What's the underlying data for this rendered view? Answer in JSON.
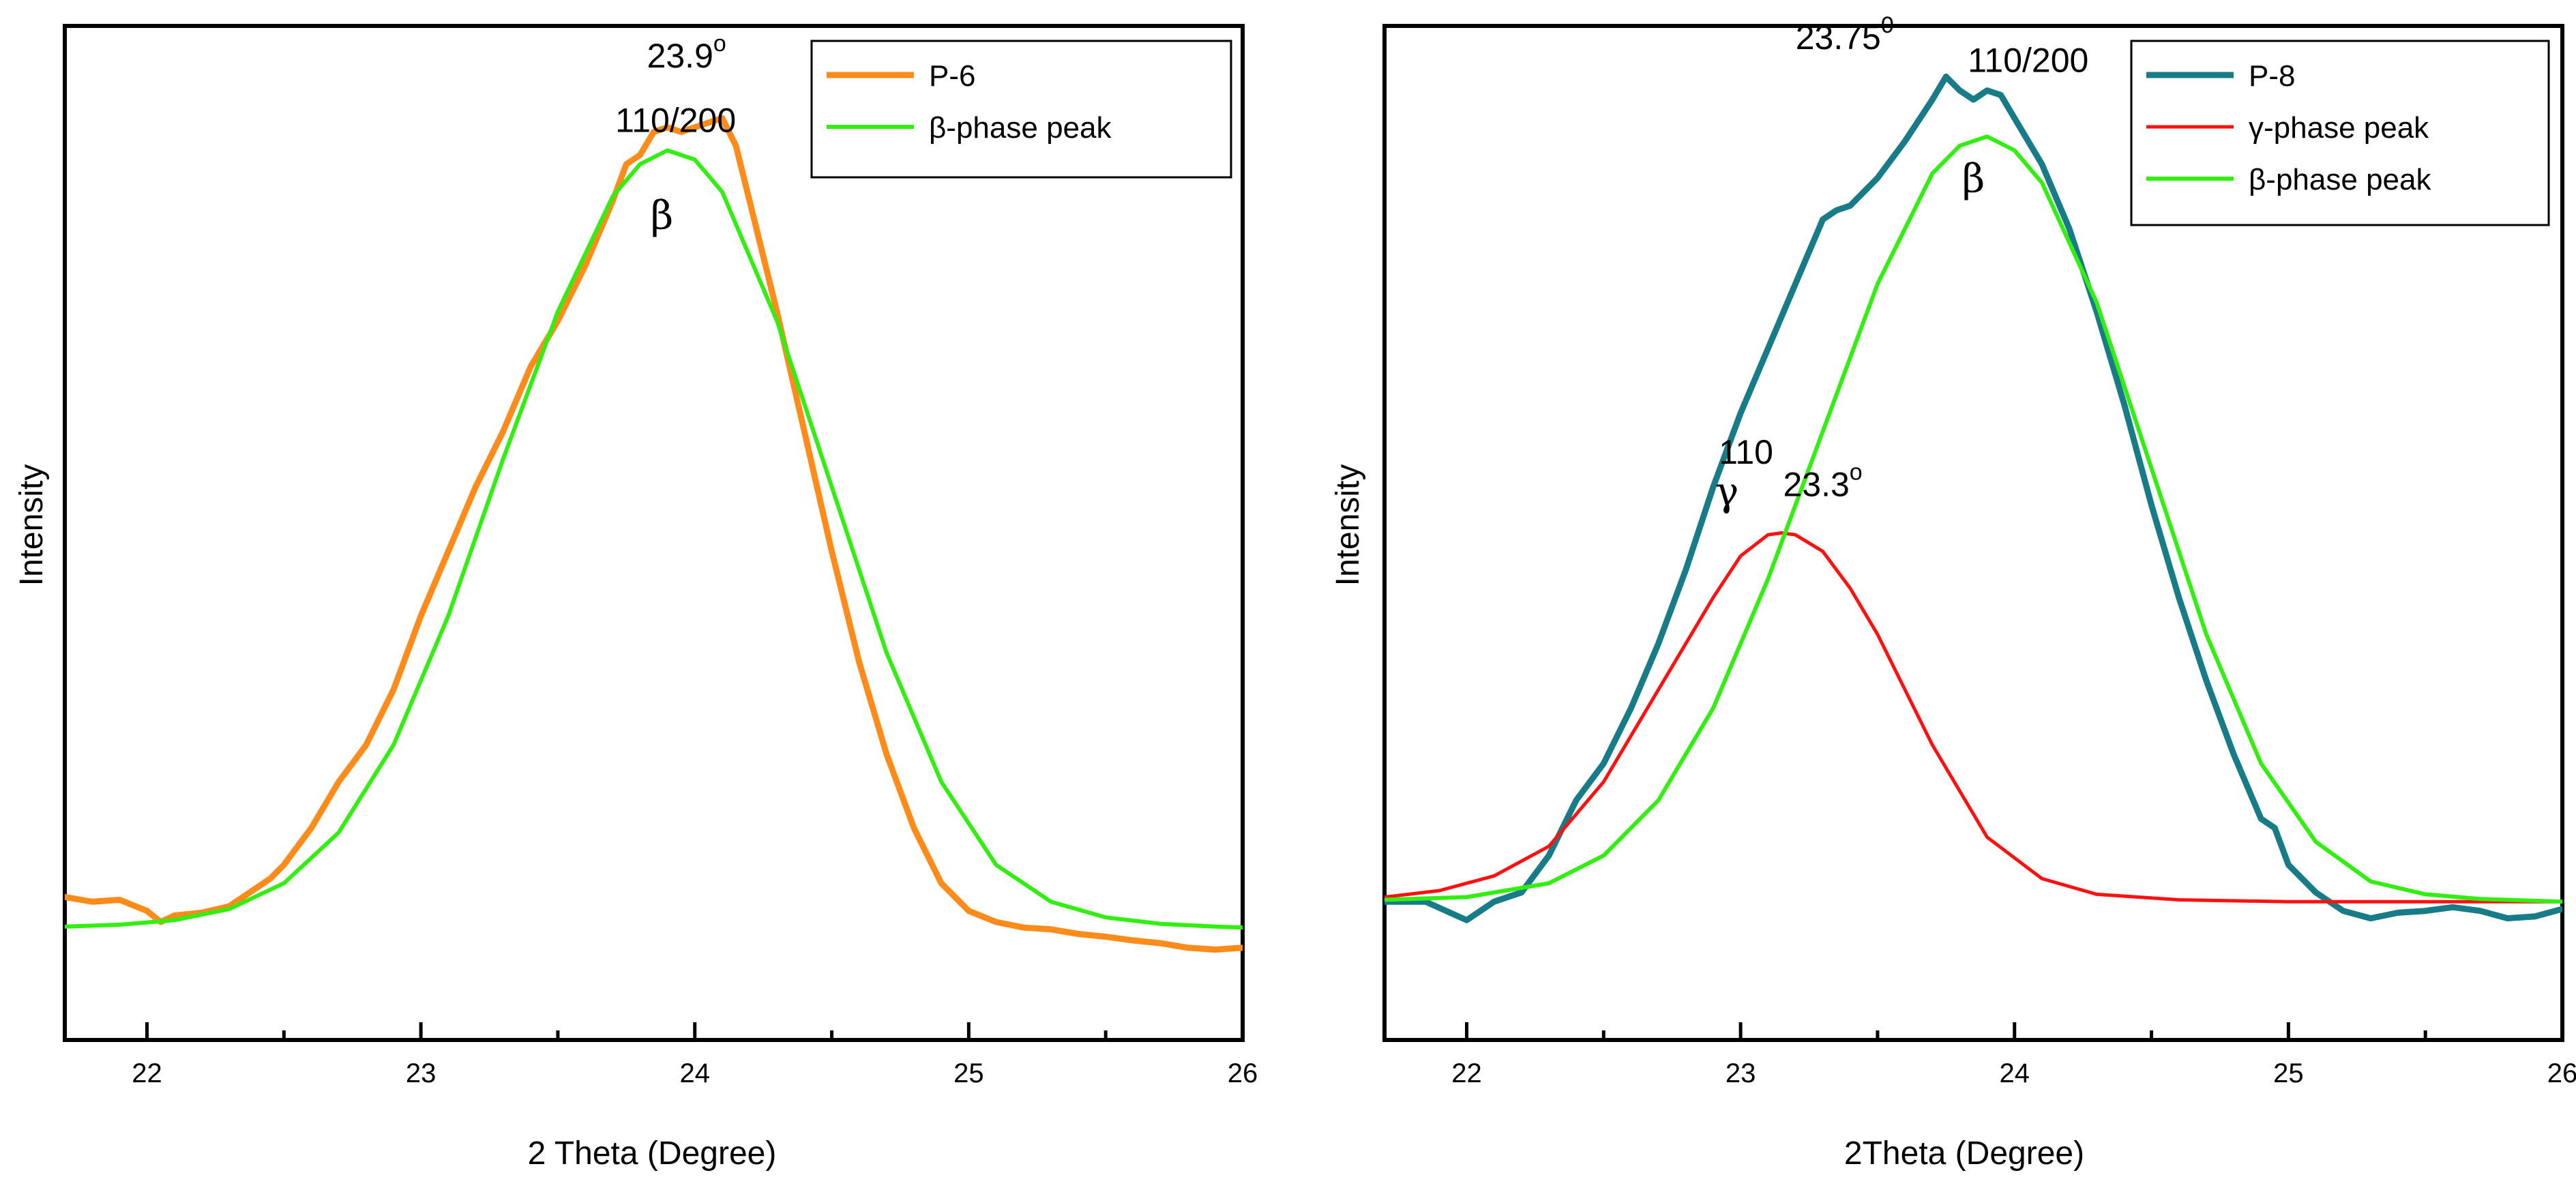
{
  "chart_data": [
    {
      "type": "line",
      "xlabel": "2 Theta (Degree)",
      "ylabel": "Intensity",
      "xlim": [
        21.7,
        26.0
      ],
      "ylim": [
        0.0,
        1.1
      ],
      "x_ticks": [
        "22",
        "23",
        "24",
        "25",
        "26"
      ],
      "annotations": [
        {
          "text": "23.9",
          "sup": "o",
          "x": 23.97,
          "y": 1.055
        },
        {
          "text": "110/200",
          "x": 23.93,
          "y": 0.985
        },
        {
          "text": "β",
          "x": 23.88,
          "y": 0.88,
          "greek": true
        }
      ],
      "series": [
        {
          "name": "P-6",
          "color": "#ff8c1a",
          "width": 9,
          "x": [
            21.7,
            21.8,
            21.9,
            22.0,
            22.05,
            22.1,
            22.2,
            22.3,
            22.4,
            22.45,
            22.5,
            22.55,
            22.6,
            22.7,
            22.8,
            22.9,
            23.0,
            23.1,
            23.2,
            23.3,
            23.4,
            23.5,
            23.6,
            23.7,
            23.75,
            23.8,
            23.85,
            23.9,
            23.95,
            24.0,
            24.05,
            24.1,
            24.15,
            24.2,
            24.3,
            24.4,
            24.5,
            24.6,
            24.7,
            24.8,
            24.9,
            25.0,
            25.1,
            25.2,
            25.3,
            25.4,
            25.5,
            25.6,
            25.7,
            25.8,
            25.9,
            26.0
          ],
          "values": [
            0.155,
            0.15,
            0.152,
            0.14,
            0.128,
            0.135,
            0.138,
            0.145,
            0.165,
            0.175,
            0.19,
            0.21,
            0.23,
            0.28,
            0.32,
            0.38,
            0.46,
            0.53,
            0.6,
            0.66,
            0.73,
            0.78,
            0.84,
            0.91,
            0.95,
            0.96,
            0.985,
            0.99,
            0.985,
            0.99,
            0.995,
            1.0,
            0.97,
            0.91,
            0.79,
            0.66,
            0.53,
            0.41,
            0.31,
            0.23,
            0.17,
            0.14,
            0.128,
            0.122,
            0.12,
            0.115,
            0.112,
            0.108,
            0.105,
            0.1,
            0.098,
            0.1
          ]
        },
        {
          "name": "β-phase peak",
          "color": "#33ee11",
          "width": 6,
          "x": [
            21.7,
            21.9,
            22.1,
            22.3,
            22.5,
            22.7,
            22.9,
            23.1,
            23.3,
            23.5,
            23.7,
            23.8,
            23.9,
            24.0,
            24.1,
            24.3,
            24.5,
            24.7,
            24.9,
            25.1,
            25.3,
            25.5,
            25.7,
            25.9,
            26.0
          ],
          "values": [
            0.123,
            0.125,
            0.13,
            0.142,
            0.17,
            0.225,
            0.32,
            0.46,
            0.63,
            0.79,
            0.915,
            0.95,
            0.965,
            0.955,
            0.92,
            0.78,
            0.6,
            0.42,
            0.28,
            0.19,
            0.15,
            0.133,
            0.126,
            0.123,
            0.122
          ]
        }
      ]
    },
    {
      "type": "line",
      "xlabel": "2Theta (Degree)",
      "ylabel": "Intensity",
      "xlim": [
        21.7,
        26.0
      ],
      "ylim": [
        0.0,
        1.1
      ],
      "x_ticks": [
        "22",
        "23",
        "24",
        "25",
        "26"
      ],
      "annotations": [
        {
          "text": "23.75",
          "sup": "0",
          "x": 23.38,
          "y": 1.075
        },
        {
          "text": "110/200",
          "x": 24.05,
          "y": 1.05
        },
        {
          "text": "β",
          "x": 23.85,
          "y": 0.92,
          "greek": true
        },
        {
          "text": "110",
          "x": 23.02,
          "y": 0.625
        },
        {
          "text": "γ",
          "x": 22.95,
          "y": 0.58,
          "greek": true
        },
        {
          "text": "23.3",
          "sup": "o",
          "x": 23.3,
          "y": 0.59
        }
      ],
      "series": [
        {
          "name": "P-8",
          "color": "#187c88",
          "width": 9,
          "x": [
            21.7,
            21.85,
            22.0,
            22.1,
            22.2,
            22.3,
            22.4,
            22.5,
            22.6,
            22.7,
            22.8,
            22.9,
            23.0,
            23.1,
            23.2,
            23.3,
            23.35,
            23.4,
            23.45,
            23.5,
            23.6,
            23.7,
            23.75,
            23.8,
            23.85,
            23.9,
            23.95,
            24.0,
            24.1,
            24.2,
            24.3,
            24.4,
            24.5,
            24.6,
            24.7,
            24.8,
            24.9,
            24.95,
            25.0,
            25.1,
            25.2,
            25.3,
            25.4,
            25.5,
            25.6,
            25.7,
            25.8,
            25.9,
            26.0
          ],
          "values": [
            0.15,
            0.15,
            0.13,
            0.15,
            0.16,
            0.2,
            0.26,
            0.3,
            0.36,
            0.43,
            0.51,
            0.6,
            0.68,
            0.75,
            0.82,
            0.89,
            0.9,
            0.905,
            0.92,
            0.935,
            0.975,
            1.02,
            1.045,
            1.03,
            1.02,
            1.03,
            1.025,
            1.0,
            0.95,
            0.88,
            0.79,
            0.69,
            0.58,
            0.48,
            0.39,
            0.31,
            0.24,
            0.23,
            0.19,
            0.16,
            0.14,
            0.132,
            0.138,
            0.14,
            0.144,
            0.14,
            0.132,
            0.134,
            0.142
          ]
        },
        {
          "name": "γ-phase peak",
          "color": "#ff1111",
          "width": 5,
          "x": [
            21.7,
            21.9,
            22.1,
            22.3,
            22.5,
            22.7,
            22.9,
            23.0,
            23.1,
            23.15,
            23.2,
            23.3,
            23.4,
            23.5,
            23.7,
            23.9,
            24.1,
            24.3,
            24.6,
            25.0,
            25.5,
            26.0
          ],
          "values": [
            0.155,
            0.162,
            0.178,
            0.21,
            0.28,
            0.38,
            0.48,
            0.525,
            0.548,
            0.55,
            0.548,
            0.53,
            0.49,
            0.44,
            0.32,
            0.22,
            0.175,
            0.158,
            0.152,
            0.15,
            0.15,
            0.15
          ]
        },
        {
          "name": "β-phase peak",
          "color": "#33ee11",
          "width": 6,
          "x": [
            21.7,
            22.0,
            22.3,
            22.5,
            22.7,
            22.9,
            23.1,
            23.3,
            23.5,
            23.7,
            23.8,
            23.9,
            24.0,
            24.1,
            24.3,
            24.5,
            24.7,
            24.9,
            25.1,
            25.3,
            25.5,
            25.7,
            26.0
          ],
          "values": [
            0.152,
            0.155,
            0.17,
            0.2,
            0.26,
            0.36,
            0.5,
            0.66,
            0.82,
            0.94,
            0.97,
            0.98,
            0.965,
            0.93,
            0.8,
            0.62,
            0.44,
            0.3,
            0.215,
            0.172,
            0.158,
            0.153,
            0.15
          ]
        }
      ]
    }
  ]
}
